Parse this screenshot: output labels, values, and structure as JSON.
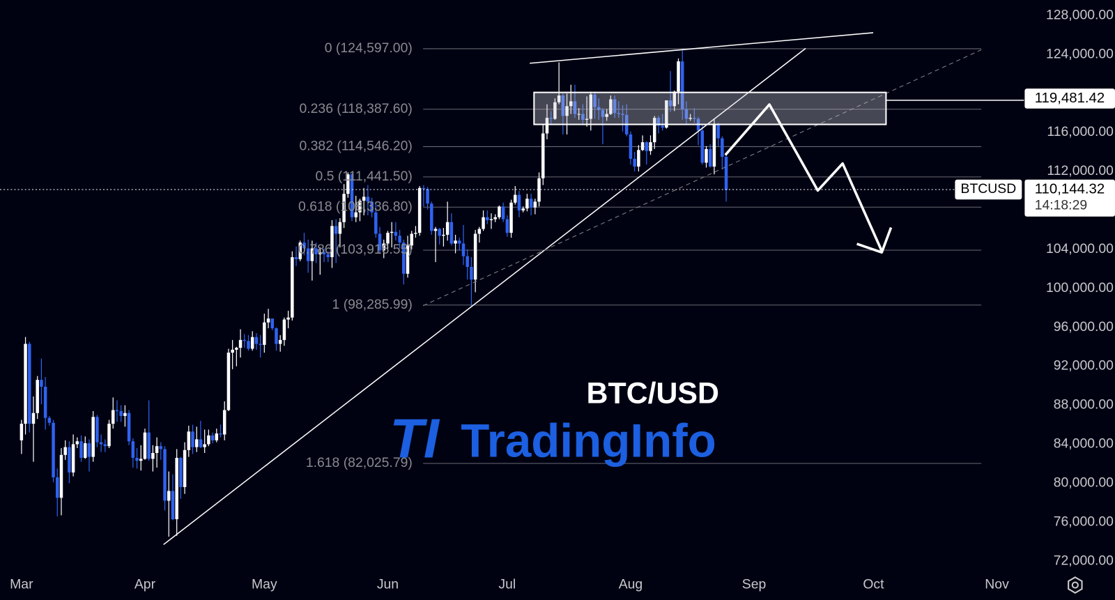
{
  "chart_data": {
    "type": "candlestick",
    "title": "BTC/USD",
    "watermark": {
      "logo": "TI",
      "name": "TradingInfo"
    },
    "symbol": "BTCUSD",
    "current_price": {
      "value": 110144.32,
      "label": "110,144.32"
    },
    "countdown": "14:18:29",
    "marked_level": {
      "value": 119481.42,
      "label": "119,481.42"
    },
    "up_color": "#ffffff",
    "down_color": "#2f63f0",
    "xlim": [
      -5.4,
      251.8
    ],
    "xticks": [
      {
        "value": 0,
        "label": "Mar"
      },
      {
        "value": 31,
        "label": "Apr"
      },
      {
        "value": 61,
        "label": "May"
      },
      {
        "value": 92,
        "label": "Jun"
      },
      {
        "value": 122,
        "label": "Jul"
      },
      {
        "value": 153,
        "label": "Aug"
      },
      {
        "value": 184,
        "label": "Sep"
      },
      {
        "value": 214,
        "label": "Oct"
      },
      {
        "value": 245,
        "label": "Nov"
      }
    ],
    "ylim": [
      71000,
      129600
    ],
    "yticks": [
      {
        "value": 72000,
        "label": "72,000.00"
      },
      {
        "value": 76000,
        "label": "76,000.00"
      },
      {
        "value": 80000,
        "label": "80,000.00"
      },
      {
        "value": 84000,
        "label": "84,000.00"
      },
      {
        "value": 88000,
        "label": "88,000.00"
      },
      {
        "value": 92000,
        "label": "92,000.00"
      },
      {
        "value": 96000,
        "label": "96,000.00"
      },
      {
        "value": 100000,
        "label": "100,000.00"
      },
      {
        "value": 104000,
        "label": "104,000.00"
      },
      {
        "value": 112000,
        "label": "112,000.00"
      },
      {
        "value": 116000,
        "label": "116,000.00"
      },
      {
        "value": 124000,
        "label": "124,000.00"
      },
      {
        "value": 128000,
        "label": "128,000.00"
      }
    ],
    "fib_levels": [
      {
        "value": 124597,
        "label": "0 (124,597.00)"
      },
      {
        "value": 118387.6,
        "label": "0.236 (118,387.60)"
      },
      {
        "value": 114546.2,
        "label": "0.382 (114,546.20)"
      },
      {
        "value": 111441.5,
        "label": "0.5 (111,441.50)"
      },
      {
        "value": 108336.8,
        "label": "0.618 (108,336.80)"
      },
      {
        "value": 103916.55,
        "label": "0.786 (103,916.55)"
      },
      {
        "value": 98285.99,
        "label": "1 (98,285.99)"
      },
      {
        "value": 82025.79,
        "label": "1.618 (82,025.79)"
      }
    ],
    "open": [
      84400,
      86100,
      94300,
      86100,
      87200,
      90600,
      89900,
      86700,
      86200,
      80600,
      78500,
      82900,
      83700,
      81100,
      84000,
      84300,
      82600,
      84100,
      82700,
      86800,
      84200,
      84000,
      83800,
      86100,
      87500,
      87400,
      86900,
      87200,
      84300,
      82600,
      82300,
      82500,
      85200,
      82500,
      83100,
      83800,
      83500,
      78200,
      79200,
      76300,
      82600,
      79600,
      83400,
      85300,
      83700,
      84500,
      83700,
      84000,
      84900,
      84400,
      85100,
      85000,
      87500,
      93400,
      93700,
      93900,
      94700,
      94600,
      93800,
      95000,
      94300,
      94200,
      96500,
      96900,
      95900,
      94300,
      94700,
      96800,
      97000,
      103200,
      103000,
      104700,
      104100,
      102800,
      104100,
      103500,
      103700,
      103500,
      103200,
      106400,
      105600,
      106800,
      109700,
      111700,
      107300,
      107800,
      109000,
      109400,
      108900,
      107800,
      105600,
      103900,
      104600,
      105700,
      105800,
      105400,
      104700,
      101500,
      104400,
      105600,
      105700,
      110300,
      110200,
      108700,
      105900,
      106100,
      105400,
      105500,
      106800,
      104600,
      104900,
      104600,
      103300,
      102200,
      100900,
      105600,
      106100,
      107300,
      107000,
      107100,
      107300,
      108400,
      107100,
      105700,
      108800,
      109600,
      108000,
      108200,
      109200,
      108300,
      108900,
      111300,
      115900,
      117500,
      117400,
      119100,
      119800,
      117700,
      118700,
      119200,
      117900,
      117900,
      117300,
      117400,
      119900,
      118600,
      118300,
      117600,
      117900,
      119400,
      118000,
      117900,
      117800,
      115800,
      113300,
      112500,
      114200,
      115000,
      114100,
      115000,
      117500,
      116700,
      116500,
      119300,
      118700,
      120200,
      123300,
      118400,
      117400,
      117500,
      117400,
      116200,
      112900,
      114300,
      112500,
      116900,
      115400,
      113500
    ],
    "high": [
      86500,
      95000,
      94500,
      88900,
      91000,
      92800,
      90900,
      86900,
      86500,
      81500,
      83600,
      84400,
      84300,
      85000,
      84700,
      84900,
      84800,
      84500,
      87400,
      87000,
      85000,
      84500,
      86500,
      88800,
      88500,
      88000,
      88000,
      87500,
      84600,
      83600,
      83900,
      85600,
      88500,
      83900,
      84700,
      84200,
      83800,
      81200,
      80900,
      83500,
      82700,
      84200,
      85900,
      86000,
      85800,
      86400,
      85500,
      85500,
      85200,
      85600,
      86000,
      88400,
      93800,
      94700,
      94000,
      95800,
      95300,
      95200,
      95600,
      95400,
      95200,
      97400,
      97900,
      96900,
      96000,
      95200,
      97000,
      97700,
      103800,
      104300,
      104900,
      105700,
      105000,
      104900,
      104700,
      104200,
      104100,
      103800,
      107000,
      107100,
      107200,
      110700,
      111900,
      111800,
      109500,
      109200,
      110300,
      110600,
      109300,
      108900,
      106300,
      105000,
      105900,
      106800,
      106800,
      106000,
      105000,
      105400,
      105900,
      106400,
      110500,
      110600,
      110400,
      108900,
      106300,
      106200,
      106200,
      108900,
      107700,
      105500,
      105200,
      106500,
      104000,
      103200,
      106000,
      106300,
      108000,
      108000,
      107700,
      107600,
      108500,
      108800,
      107500,
      109100,
      110500,
      110000,
      108400,
      109700,
      109700,
      109200,
      111900,
      116800,
      118900,
      118200,
      119500,
      123200,
      120000,
      120000,
      120900,
      120900,
      118500,
      118900,
      119700,
      120200,
      120200,
      119500,
      118500,
      118400,
      119800,
      119800,
      119200,
      118800,
      118900,
      116100,
      114000,
      114700,
      115700,
      115100,
      115700,
      117700,
      117700,
      117900,
      119300,
      122300,
      120300,
      123600,
      124500,
      119200,
      117900,
      118500,
      117600,
      116800,
      114600,
      114800,
      117400,
      117000,
      115600,
      113700
    ],
    "low": [
      83000,
      85000,
      85200,
      82200,
      86600,
      88100,
      85500,
      85900,
      80100,
      76600,
      76700,
      82400,
      80000,
      80700,
      83600,
      82200,
      82500,
      81200,
      82200,
      83700,
      83200,
      83200,
      83600,
      85600,
      86300,
      86300,
      85800,
      83900,
      81600,
      81500,
      81300,
      82400,
      82300,
      81200,
      81600,
      82400,
      77200,
      74500,
      76200,
      74600,
      78400,
      78900,
      82700,
      83000,
      83200,
      83600,
      83100,
      83800,
      84100,
      84200,
      84700,
      84400,
      87400,
      91700,
      92000,
      92900,
      93900,
      93600,
      93600,
      93700,
      92900,
      93400,
      95900,
      95700,
      93600,
      93500,
      94100,
      95900,
      96700,
      102300,
      102800,
      103400,
      101600,
      100800,
      102600,
      101400,
      102700,
      102700,
      102100,
      102600,
      104200,
      106200,
      109300,
      106900,
      106800,
      106900,
      107500,
      107500,
      107300,
      105200,
      103600,
      103100,
      103900,
      104200,
      104900,
      104100,
      100400,
      101100,
      104000,
      105200,
      105400,
      108400,
      108100,
      105500,
      102700,
      104500,
      104300,
      104900,
      104400,
      103600,
      103900,
      102400,
      100900,
      98200,
      99600,
      104700,
      105900,
      106600,
      106100,
      106800,
      107100,
      106800,
      105300,
      105200,
      108600,
      107300,
      107800,
      107900,
      107500,
      107600,
      108400,
      110600,
      115300,
      116900,
      117300,
      118900,
      115800,
      115800,
      117900,
      117500,
      117300,
      116900,
      116600,
      116200,
      117400,
      117300,
      114800,
      117200,
      117800,
      117500,
      117500,
      116100,
      115600,
      112700,
      112000,
      112000,
      114100,
      112700,
      113700,
      114300,
      115900,
      116200,
      116400,
      118100,
      118200,
      118900,
      117300,
      116800,
      117200,
      117000,
      114700,
      112700,
      112400,
      112400,
      111700,
      114600,
      112200,
      108900
    ],
    "close": [
      86100,
      94300,
      86100,
      87200,
      90600,
      89900,
      86700,
      86200,
      80600,
      78500,
      82900,
      83700,
      81100,
      84000,
      84300,
      82600,
      84100,
      82700,
      86800,
      84200,
      84000,
      83800,
      86100,
      87500,
      87400,
      86900,
      87200,
      84300,
      82600,
      82300,
      82500,
      85200,
      82500,
      83100,
      83800,
      83500,
      78200,
      79200,
      76300,
      82600,
      79600,
      83400,
      85300,
      83700,
      84500,
      83700,
      84000,
      84900,
      84400,
      85100,
      85000,
      87500,
      93400,
      93700,
      93900,
      94700,
      94600,
      93800,
      95000,
      94300,
      94200,
      96500,
      96900,
      95900,
      94300,
      94700,
      96800,
      97000,
      103200,
      103000,
      104700,
      104100,
      102800,
      104100,
      103500,
      103700,
      103500,
      103200,
      106400,
      105600,
      106800,
      109700,
      111700,
      107300,
      107800,
      109000,
      109400,
      108900,
      107800,
      105600,
      103900,
      104600,
      105700,
      105800,
      105400,
      104700,
      101500,
      104400,
      105600,
      105700,
      110300,
      110200,
      108700,
      105900,
      106100,
      105400,
      105500,
      106800,
      104600,
      104900,
      104600,
      103300,
      102200,
      100900,
      105600,
      106100,
      107300,
      107000,
      107100,
      107300,
      108400,
      107100,
      105700,
      108800,
      109600,
      108000,
      108200,
      109200,
      108300,
      108900,
      111300,
      115900,
      117500,
      117400,
      119100,
      119800,
      117700,
      118700,
      119200,
      117900,
      117900,
      117300,
      117400,
      119900,
      118600,
      118300,
      117600,
      117900,
      119400,
      118000,
      117900,
      117800,
      115800,
      113300,
      112500,
      114200,
      115000,
      114100,
      115000,
      117500,
      116700,
      116500,
      119300,
      118700,
      120200,
      123300,
      118400,
      117400,
      117500,
      117400,
      116200,
      112900,
      114300,
      112500,
      116900,
      115400,
      113500,
      110100
    ]
  }
}
